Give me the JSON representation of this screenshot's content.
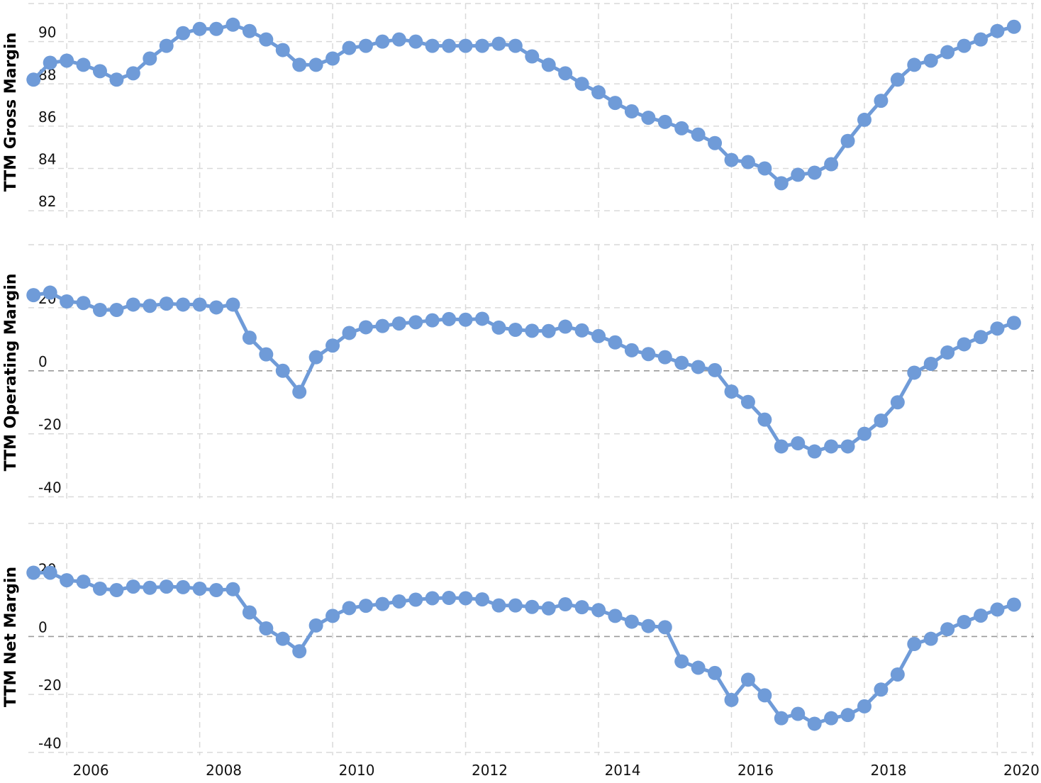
{
  "chart_data": [
    {
      "type": "line",
      "ylabel": "TTM Gross Margin",
      "ylim": [
        81.5,
        91.8
      ],
      "yticks": [
        82,
        84,
        86,
        88,
        90
      ],
      "x": [
        2005.5,
        2005.75,
        2006,
        2006.25,
        2006.5,
        2006.75,
        2007,
        2007.25,
        2007.5,
        2007.75,
        2008,
        2008.25,
        2008.5,
        2008.75,
        2009,
        2009.25,
        2009.5,
        2009.75,
        2010,
        2010.25,
        2010.5,
        2010.75,
        2011,
        2011.25,
        2011.5,
        2011.75,
        2012,
        2012.25,
        2012.5,
        2012.75,
        2013,
        2013.25,
        2013.5,
        2013.75,
        2014,
        2014.25,
        2014.5,
        2014.75,
        2015,
        2015.25,
        2015.5,
        2015.75,
        2016,
        2016.25,
        2016.5,
        2016.75,
        2017,
        2017.25,
        2017.5,
        2017.75,
        2018,
        2018.25,
        2018.5,
        2018.75,
        2019,
        2019.25,
        2019.5,
        2019.75,
        2020,
        2020.25
      ],
      "values": [
        88.2,
        89,
        89.1,
        88.9,
        88.6,
        88.2,
        88.5,
        89.2,
        89.8,
        90.4,
        90.6,
        90.6,
        90.8,
        90.5,
        90.1,
        89.6,
        88.9,
        88.9,
        89.2,
        89.7,
        89.8,
        90,
        90.1,
        90,
        89.8,
        89.8,
        89.8,
        89.8,
        89.9,
        89.8,
        89.3,
        88.9,
        88.5,
        88,
        87.6,
        87.1,
        86.7,
        86.4,
        86.2,
        85.9,
        85.6,
        85.2,
        84.4,
        84.3,
        84,
        83.3,
        83.7,
        83.8,
        84.2,
        85.3,
        86.3,
        87.2,
        88.2,
        88.9,
        89.1,
        89.5,
        89.8,
        90.1,
        90.5,
        90.7
      ],
      "grid": true,
      "color": "#6f9bd8"
    },
    {
      "type": "line",
      "ylabel": "TTM Operating Margin",
      "ylim": [
        -41,
        40
      ],
      "yticks": [
        -40,
        -20,
        0,
        20
      ],
      "x": [
        2005.5,
        2005.75,
        2006,
        2006.25,
        2006.5,
        2006.75,
        2007,
        2007.25,
        2007.5,
        2007.75,
        2008,
        2008.25,
        2008.5,
        2008.75,
        2009,
        2009.25,
        2009.5,
        2009.75,
        2010,
        2010.25,
        2010.5,
        2010.75,
        2011,
        2011.25,
        2011.5,
        2011.75,
        2012,
        2012.25,
        2012.5,
        2012.75,
        2013,
        2013.25,
        2013.5,
        2013.75,
        2014,
        2014.25,
        2014.5,
        2014.75,
        2015,
        2015.25,
        2015.5,
        2015.75,
        2016,
        2016.25,
        2016.5,
        2016.75,
        2017,
        2017.25,
        2017.5,
        2017.75,
        2018,
        2018.25,
        2018.5,
        2018.75,
        2019,
        2019.25,
        2019.5,
        2019.75,
        2020,
        2020.25
      ],
      "values": [
        24,
        24.8,
        22,
        21.5,
        19.3,
        19.3,
        21,
        20.6,
        21.3,
        21,
        21,
        20.1,
        21,
        10.5,
        5.2,
        0,
        -6.7,
        4.3,
        8,
        12,
        13.8,
        14.2,
        15,
        15.4,
        16,
        16.4,
        16.2,
        16.5,
        13.7,
        13,
        12.7,
        12.6,
        14,
        12.8,
        11,
        9,
        6.5,
        5.3,
        4.3,
        2.5,
        1.2,
        0.2,
        -6.6,
        -9.9,
        -15.5,
        -24,
        -23,
        -25.6,
        -24,
        -24,
        -20,
        -15.8,
        -10,
        -0.6,
        2.2,
        5.8,
        8.4,
        10.7,
        13.4,
        15.2
      ],
      "grid": true,
      "color": "#6f9bd8"
    },
    {
      "type": "line",
      "ylabel": "TTM Net Margin",
      "ylim": [
        -41,
        39
      ],
      "yticks": [
        -40,
        -20,
        0,
        20
      ],
      "x": [
        2005.5,
        2005.75,
        2006,
        2006.25,
        2006.5,
        2006.75,
        2007,
        2007.25,
        2007.5,
        2007.75,
        2008,
        2008.25,
        2008.5,
        2008.75,
        2009,
        2009.25,
        2009.5,
        2009.75,
        2010,
        2010.25,
        2010.5,
        2010.75,
        2011,
        2011.25,
        2011.5,
        2011.75,
        2012,
        2012.25,
        2012.5,
        2012.75,
        2013,
        2013.25,
        2013.5,
        2013.75,
        2014,
        2014.25,
        2014.5,
        2014.75,
        2015,
        2015.25,
        2015.5,
        2015.75,
        2016,
        2016.25,
        2016.5,
        2016.75,
        2017,
        2017.25,
        2017.5,
        2017.75,
        2018,
        2018.25,
        2018.5,
        2018.75,
        2019,
        2019.25,
        2019.5,
        2019.75,
        2020,
        2020.25
      ],
      "values": [
        22,
        22,
        19.4,
        18.9,
        16.5,
        16,
        17.2,
        16.8,
        17.2,
        17,
        16.5,
        16,
        16.3,
        8.3,
        2.8,
        -0.8,
        -5.1,
        3.8,
        7.1,
        9.8,
        10.6,
        11.2,
        12.1,
        12.7,
        13.2,
        13.3,
        13.2,
        12.8,
        10.7,
        10.7,
        10.2,
        9.7,
        11.1,
        10.1,
        9.1,
        7.1,
        5.1,
        3.6,
        3.2,
        -8.6,
        -10.8,
        -12.6,
        -21.9,
        -14.9,
        -20.3,
        -28.2,
        -26.7,
        -30.1,
        -28.2,
        -27.1,
        -24.1,
        -18.3,
        -13.1,
        -2.6,
        -0.8,
        2.5,
        5,
        7.2,
        9.3,
        11
      ]
    }
  ],
  "x_ticks": [
    "2006",
    "2008",
    "2010",
    "2012",
    "2014",
    "2016",
    "2018",
    "2020"
  ],
  "x_tick_values": [
    2006,
    2008,
    2010,
    2012,
    2014,
    2016,
    2018,
    2020
  ],
  "line_color": "#6f9bd8",
  "grid_color": "#d9d9d9",
  "zero_line_color": "#9a9a9a"
}
